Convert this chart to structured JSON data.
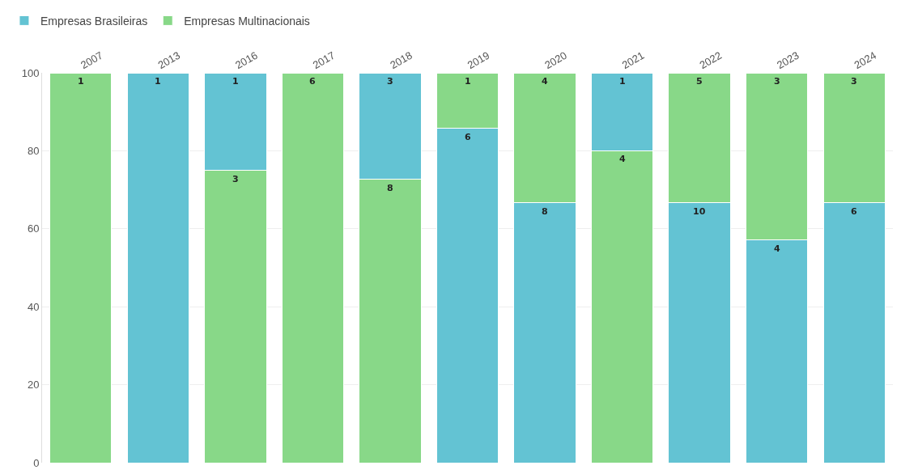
{
  "chart_data": {
    "type": "bar",
    "stacked": true,
    "categories": [
      "2007",
      "2013",
      "2016",
      "2017",
      "2018",
      "2019",
      "2020",
      "2021",
      "2022",
      "2023",
      "2024"
    ],
    "series": [
      {
        "name": "Empresas Brasileiras",
        "color": "#63c3d3",
        "values": [
          null,
          100,
          null,
          null,
          null,
          85.7,
          66.7,
          null,
          66.7,
          57.1,
          66.7
        ]
      },
      {
        "name": "Empresas Multinacionais",
        "color": "#88d888",
        "values": [
          100,
          null,
          75,
          100,
          72.7,
          null,
          null,
          80,
          null,
          null,
          null
        ]
      },
      {
        "color": "#63c3d3",
        "values": [
          null,
          null,
          25,
          null,
          27.3,
          null,
          null,
          20,
          null,
          null,
          null
        ]
      },
      {
        "color": "#88d888",
        "values": [
          null,
          null,
          null,
          null,
          null,
          14.3,
          33.3,
          null,
          33.3,
          42.9,
          33.3
        ]
      }
    ],
    "annotations": [
      {
        "text": "1",
        "x": "2007",
        "y": 100
      },
      {
        "text": "1",
        "x": "2013",
        "y": 100
      },
      {
        "text": "1",
        "x": "2016",
        "y": 100
      },
      {
        "text": "3",
        "x": "2016",
        "y": 75
      },
      {
        "text": "6",
        "x": "2017",
        "y": 100
      },
      {
        "text": "3",
        "x": "2018",
        "y": 100
      },
      {
        "text": "8",
        "x": "2018",
        "y": 72.7
      },
      {
        "text": "1",
        "x": "2019",
        "y": 100
      },
      {
        "text": "6",
        "x": "2019",
        "y": 85.7
      },
      {
        "text": "4",
        "x": "2020",
        "y": 100
      },
      {
        "text": "8",
        "x": "2020",
        "y": 66.7
      },
      {
        "text": "1",
        "x": "2021",
        "y": 100
      },
      {
        "text": "4",
        "x": "2021",
        "y": 80
      },
      {
        "text": "5",
        "x": "2022",
        "y": 100
      },
      {
        "text": "10",
        "x": "2022",
        "y": 66.7
      },
      {
        "text": "3",
        "x": "2023",
        "y": 100
      },
      {
        "text": "4",
        "x": "2023",
        "y": 57.1
      },
      {
        "text": "3",
        "x": "2024",
        "y": 100
      },
      {
        "text": "6",
        "x": "2024",
        "y": 66.7
      }
    ],
    "ylim": [
      0,
      100
    ],
    "yticks": [
      0,
      20,
      40,
      60,
      80,
      100
    ],
    "grid": "y",
    "legend": "top left"
  }
}
